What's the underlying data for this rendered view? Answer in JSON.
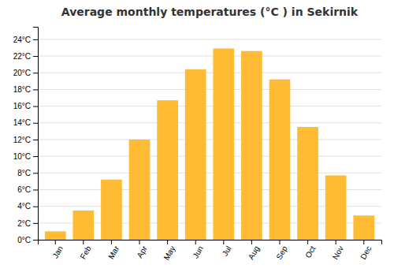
{
  "chart_data": {
    "type": "bar",
    "title": "Average monthly temperatures (°C ) in Sekirnik",
    "categories": [
      "Jan",
      "Feb",
      "Mar",
      "Apr",
      "May",
      "Jun",
      "Jul",
      "Aug",
      "Sep",
      "Oct",
      "Nov",
      "Dec"
    ],
    "values": [
      1.0,
      3.5,
      7.2,
      12.0,
      16.7,
      20.4,
      22.9,
      22.6,
      19.2,
      13.5,
      7.7,
      2.9
    ],
    "color": "#FFBB33",
    "ylim": [
      0,
      25.5
    ],
    "yticks": [
      {
        "value": 0,
        "label": "0°C"
      },
      {
        "value": 2,
        "label": "2°C"
      },
      {
        "value": 4,
        "label": "4°C"
      },
      {
        "value": 6,
        "label": "6°C"
      },
      {
        "value": 8,
        "label": "8°C"
      },
      {
        "value": 10,
        "label": "10°C"
      },
      {
        "value": 12,
        "label": "12°C"
      },
      {
        "value": 14,
        "label": "14°C"
      },
      {
        "value": 16,
        "label": "16°C"
      },
      {
        "value": 18,
        "label": "18°C"
      },
      {
        "value": 20,
        "label": "20°C"
      },
      {
        "value": 22,
        "label": "22°C"
      },
      {
        "value": 24,
        "label": "24°C"
      }
    ],
    "grid": true
  }
}
